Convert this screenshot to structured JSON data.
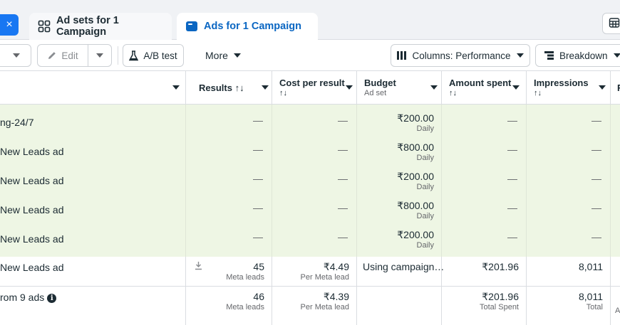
{
  "tabs": {
    "close_label": "×",
    "adsets_label": "Ad sets for 1 Campaign",
    "ads_label": "Ads for 1 Campaign"
  },
  "toolbar": {
    "edit_label": "Edit",
    "ab_test_label": "A/B test",
    "more_label": "More",
    "columns_label": "Columns: Performance",
    "breakdown_label": "Breakdown"
  },
  "columns": {
    "results": {
      "title": "Results ↑↓"
    },
    "cost": {
      "title": "Cost per result",
      "sort": "↑↓"
    },
    "budget": {
      "title": "Budget",
      "sub": "Ad set"
    },
    "amount": {
      "title": "Amount spent",
      "sort": "↑↓"
    },
    "impressions": {
      "title": "Impressions",
      "sort": "↑↓"
    },
    "partial": "R"
  },
  "rows": [
    {
      "name": "ng-24/7",
      "results": "—",
      "cost": "—",
      "budget": "₹200.00",
      "budget_sub": "Daily",
      "amount": "—",
      "impressions": "—"
    },
    {
      "name": "New Leads ad",
      "results": "—",
      "cost": "—",
      "budget": "₹800.00",
      "budget_sub": "Daily",
      "amount": "—",
      "impressions": "—"
    },
    {
      "name": "New Leads ad",
      "results": "—",
      "cost": "—",
      "budget": "₹200.00",
      "budget_sub": "Daily",
      "amount": "—",
      "impressions": "—"
    },
    {
      "name": "New Leads ad",
      "results": "—",
      "cost": "—",
      "budget": "₹800.00",
      "budget_sub": "Daily",
      "amount": "—",
      "impressions": "—"
    },
    {
      "name": "New Leads ad",
      "results": "—",
      "cost": "—",
      "budget": "₹200.00",
      "budget_sub": "Daily",
      "amount": "—",
      "impressions": "—"
    }
  ],
  "active_row": {
    "name": "New Leads ad",
    "results": "45",
    "results_sub": "Meta leads",
    "cost": "₹4.49",
    "cost_sub": "Per Meta lead",
    "budget": "Using campaign…",
    "amount": "₹201.96",
    "impressions": "8,011"
  },
  "total_row": {
    "name": "rom 9 ads",
    "results": "46",
    "results_sub": "Meta leads",
    "cost": "₹4.39",
    "cost_sub": "Per Meta lead",
    "amount": "₹201.96",
    "amount_sub": "Total Spent",
    "impressions": "8,011",
    "impressions_sub": "Total",
    "partial": "A"
  }
}
